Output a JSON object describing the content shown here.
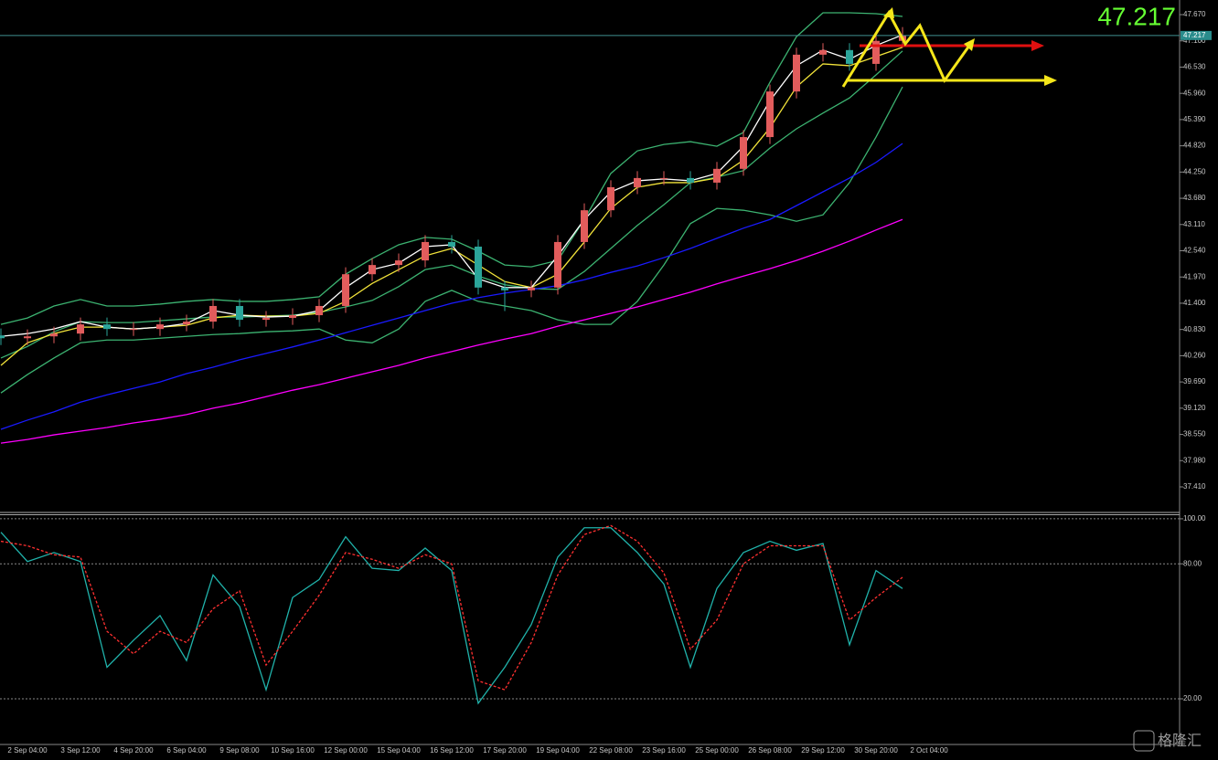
{
  "chart_data": [
    {
      "type": "candlestick",
      "open": [
        40.7,
        40.64,
        40.68,
        40.74,
        40.94,
        40.84,
        40.84,
        40.94,
        41.0,
        41.34,
        41.04,
        41.08,
        41.14,
        41.34,
        42.03,
        42.23,
        42.33,
        42.73,
        42.63,
        41.74,
        41.68,
        41.74,
        42.73,
        43.42,
        43.92,
        44.12,
        44.12,
        44.02,
        44.32,
        45.01,
        46.0,
        46.8,
        46.9,
        46.6,
        47.1,
        null
      ],
      "high": [
        40.85,
        40.83,
        40.89,
        41.09,
        41.09,
        40.99,
        41.09,
        41.15,
        41.49,
        41.49,
        41.23,
        41.29,
        41.49,
        42.18,
        42.38,
        42.48,
        42.88,
        42.88,
        42.78,
        41.89,
        41.89,
        42.88,
        43.57,
        44.07,
        44.27,
        44.27,
        44.27,
        44.47,
        45.16,
        46.15,
        46.95,
        47.05,
        47.05,
        47.25,
        47.4,
        null
      ],
      "low": [
        40.49,
        40.49,
        40.53,
        40.59,
        40.69,
        40.69,
        40.69,
        40.79,
        40.85,
        40.89,
        40.89,
        40.93,
        40.99,
        41.19,
        41.88,
        42.08,
        42.18,
        42.48,
        41.59,
        41.23,
        41.53,
        41.59,
        42.58,
        43.27,
        43.77,
        43.97,
        43.87,
        43.87,
        44.17,
        44.86,
        45.85,
        46.65,
        46.45,
        46.45,
        46.95,
        null
      ],
      "close": [
        40.64,
        40.68,
        40.74,
        40.94,
        40.84,
        40.84,
        40.94,
        41.0,
        41.34,
        41.04,
        41.08,
        41.14,
        41.34,
        42.03,
        42.23,
        42.33,
        42.73,
        42.63,
        41.74,
        41.68,
        41.74,
        42.73,
        43.42,
        43.92,
        44.12,
        44.12,
        44.02,
        44.32,
        45.01,
        46.0,
        46.8,
        46.9,
        46.6,
        47.1,
        47.217,
        null
      ],
      "up_color": "#e25c5c",
      "down_color": "#2ba59a",
      "lines": [
        {
          "color": "#3cb371",
          "values": [
            40.94,
            41.08,
            41.34,
            41.48,
            41.34,
            41.34,
            41.38,
            41.44,
            41.48,
            41.44,
            41.44,
            41.48,
            41.54,
            42.03,
            42.37,
            42.67,
            42.83,
            42.79,
            42.53,
            42.23,
            42.19,
            42.33,
            43.22,
            44.22,
            44.71,
            44.85,
            44.91,
            44.81,
            45.11,
            46.2,
            47.19,
            47.71,
            47.71,
            47.69,
            47.63,
            null
          ]
        },
        {
          "color": "#3cb371",
          "values": [
            40.21,
            40.46,
            40.78,
            41.0,
            40.98,
            40.98,
            41.02,
            41.06,
            41.1,
            41.1,
            41.12,
            41.14,
            41.2,
            41.32,
            41.46,
            41.76,
            42.13,
            42.23,
            41.99,
            41.8,
            41.72,
            41.7,
            42.09,
            42.59,
            43.09,
            43.54,
            44.02,
            44.14,
            44.28,
            44.77,
            45.19,
            45.53,
            45.86,
            46.36,
            46.88,
            null
          ]
        },
        {
          "color": "#3cb371",
          "values": [
            39.45,
            39.85,
            40.21,
            40.54,
            40.6,
            40.6,
            40.64,
            40.68,
            40.72,
            40.74,
            40.78,
            40.8,
            40.84,
            40.6,
            40.54,
            40.84,
            41.44,
            41.68,
            41.44,
            41.34,
            41.24,
            41.04,
            40.94,
            40.94,
            41.44,
            42.23,
            43.13,
            43.46,
            43.42,
            43.32,
            43.18,
            43.32,
            44.02,
            45.01,
            46.1,
            null
          ]
        },
        {
          "color": "#1a1aff",
          "values": [
            38.66,
            38.86,
            39.04,
            39.25,
            39.41,
            39.55,
            39.69,
            39.87,
            40.01,
            40.17,
            40.31,
            40.45,
            40.6,
            40.76,
            40.92,
            41.08,
            41.24,
            41.4,
            41.52,
            41.62,
            41.7,
            41.78,
            41.91,
            42.07,
            42.21,
            42.39,
            42.59,
            42.81,
            43.03,
            43.22,
            43.52,
            43.82,
            44.12,
            44.46,
            44.87,
            null
          ]
        },
        {
          "color": "#ff00ff",
          "values": [
            38.36,
            38.44,
            38.54,
            38.62,
            38.7,
            38.8,
            38.88,
            38.98,
            39.12,
            39.23,
            39.37,
            39.51,
            39.63,
            39.77,
            39.91,
            40.05,
            40.21,
            40.35,
            40.49,
            40.62,
            40.74,
            40.9,
            41.04,
            41.18,
            41.32,
            41.48,
            41.64,
            41.82,
            41.99,
            42.15,
            42.33,
            42.53,
            42.75,
            42.99,
            43.22,
            null
          ]
        },
        {
          "color": "#f2e33a",
          "values": [
            40.05,
            40.54,
            40.74,
            40.88,
            40.88,
            40.84,
            40.88,
            40.92,
            41.08,
            41.14,
            41.12,
            41.12,
            41.18,
            41.44,
            41.83,
            42.13,
            42.43,
            42.59,
            42.23,
            41.87,
            41.74,
            42.03,
            42.73,
            43.46,
            43.92,
            44.02,
            44.02,
            44.12,
            44.51,
            45.21,
            46.1,
            46.6,
            46.56,
            46.76,
            46.96,
            null
          ]
        },
        {
          "color": "#ffffff",
          "values": [
            40.68,
            40.74,
            40.84,
            41.0,
            40.88,
            40.84,
            40.88,
            40.96,
            41.24,
            41.14,
            41.1,
            41.12,
            41.24,
            41.74,
            42.13,
            42.27,
            42.63,
            42.67,
            41.93,
            41.74,
            41.74,
            42.43,
            43.22,
            43.82,
            44.06,
            44.1,
            44.06,
            44.22,
            44.81,
            45.8,
            46.56,
            46.9,
            46.7,
            47.0,
            47.23,
            null
          ]
        }
      ],
      "last_price": 47.217,
      "ylim": [
        36.874,
        47.988
      ],
      "yticks": [
        {
          "value": 47.67,
          "label": "47.670"
        },
        {
          "value": 47.1,
          "label": "47.100"
        },
        {
          "value": 46.53,
          "label": "46.530"
        },
        {
          "value": 45.96,
          "label": "45.960"
        },
        {
          "value": 45.39,
          "label": "45.390"
        },
        {
          "value": 44.82,
          "label": "44.820"
        },
        {
          "value": 44.25,
          "label": "44.250"
        },
        {
          "value": 43.68,
          "label": "43.680"
        },
        {
          "value": 43.11,
          "label": "43.110"
        },
        {
          "value": 42.54,
          "label": "42.540"
        },
        {
          "value": 41.97,
          "label": "41.970"
        },
        {
          "value": 41.4,
          "label": "41.400"
        },
        {
          "value": 40.83,
          "label": "40.830"
        },
        {
          "value": 40.26,
          "label": "40.260"
        },
        {
          "value": 39.69,
          "label": "39.690"
        },
        {
          "value": 39.12,
          "label": "39.120"
        },
        {
          "value": 38.55,
          "label": "38.550"
        },
        {
          "value": 37.98,
          "label": "37.980"
        },
        {
          "value": 37.41,
          "label": "37.410"
        }
      ]
    },
    {
      "type": "line",
      "categories": [
        null,
        "2 Sep 04:00",
        null,
        "3 Sep 12:00",
        null,
        "4 Sep 20:00",
        null,
        "6 Sep 04:00",
        null,
        "9 Sep 08:00",
        null,
        "10 Sep 16:00",
        null,
        "12 Sep 00:00",
        null,
        "15 Sep 04:00",
        null,
        "16 Sep 12:00",
        null,
        "17 Sep 20:00",
        null,
        "19 Sep 04:00",
        null,
        "22 Sep 08:00",
        null,
        "23 Sep 16:00",
        null,
        "25 Sep 00:00",
        null,
        "26 Sep 08:00",
        null,
        "29 Sep 12:00",
        null,
        "30 Sep 20:00",
        null,
        "2 Oct 04:00"
      ],
      "series": [
        {
          "color": "#20b2aa",
          "values": [
            94,
            81,
            85,
            81,
            34,
            46,
            57,
            37,
            75,
            61,
            24,
            65,
            73,
            92,
            78,
            77,
            87,
            77,
            18,
            34,
            53,
            83,
            96,
            96,
            85,
            71,
            34,
            69,
            85,
            90,
            86,
            89,
            44,
            77,
            69,
            null
          ]
        },
        {
          "color": "#ff3030",
          "dashed": true,
          "values": [
            90,
            88,
            84,
            83,
            50,
            40,
            50,
            45,
            60,
            68,
            35,
            50,
            66,
            85,
            82,
            78,
            84,
            80,
            28,
            24,
            45,
            75,
            93,
            97,
            90,
            76,
            42,
            55,
            80,
            88,
            88,
            88,
            55,
            65,
            74,
            null
          ]
        }
      ],
      "ylim": [
        -0.3,
        102
      ],
      "yticks": [
        {
          "value": 100,
          "label": "100.00"
        },
        {
          "value": 80,
          "label": "80.00"
        },
        {
          "value": 20,
          "label": "20.00"
        }
      ],
      "grid": true
    }
  ],
  "watermark": "格隆汇"
}
